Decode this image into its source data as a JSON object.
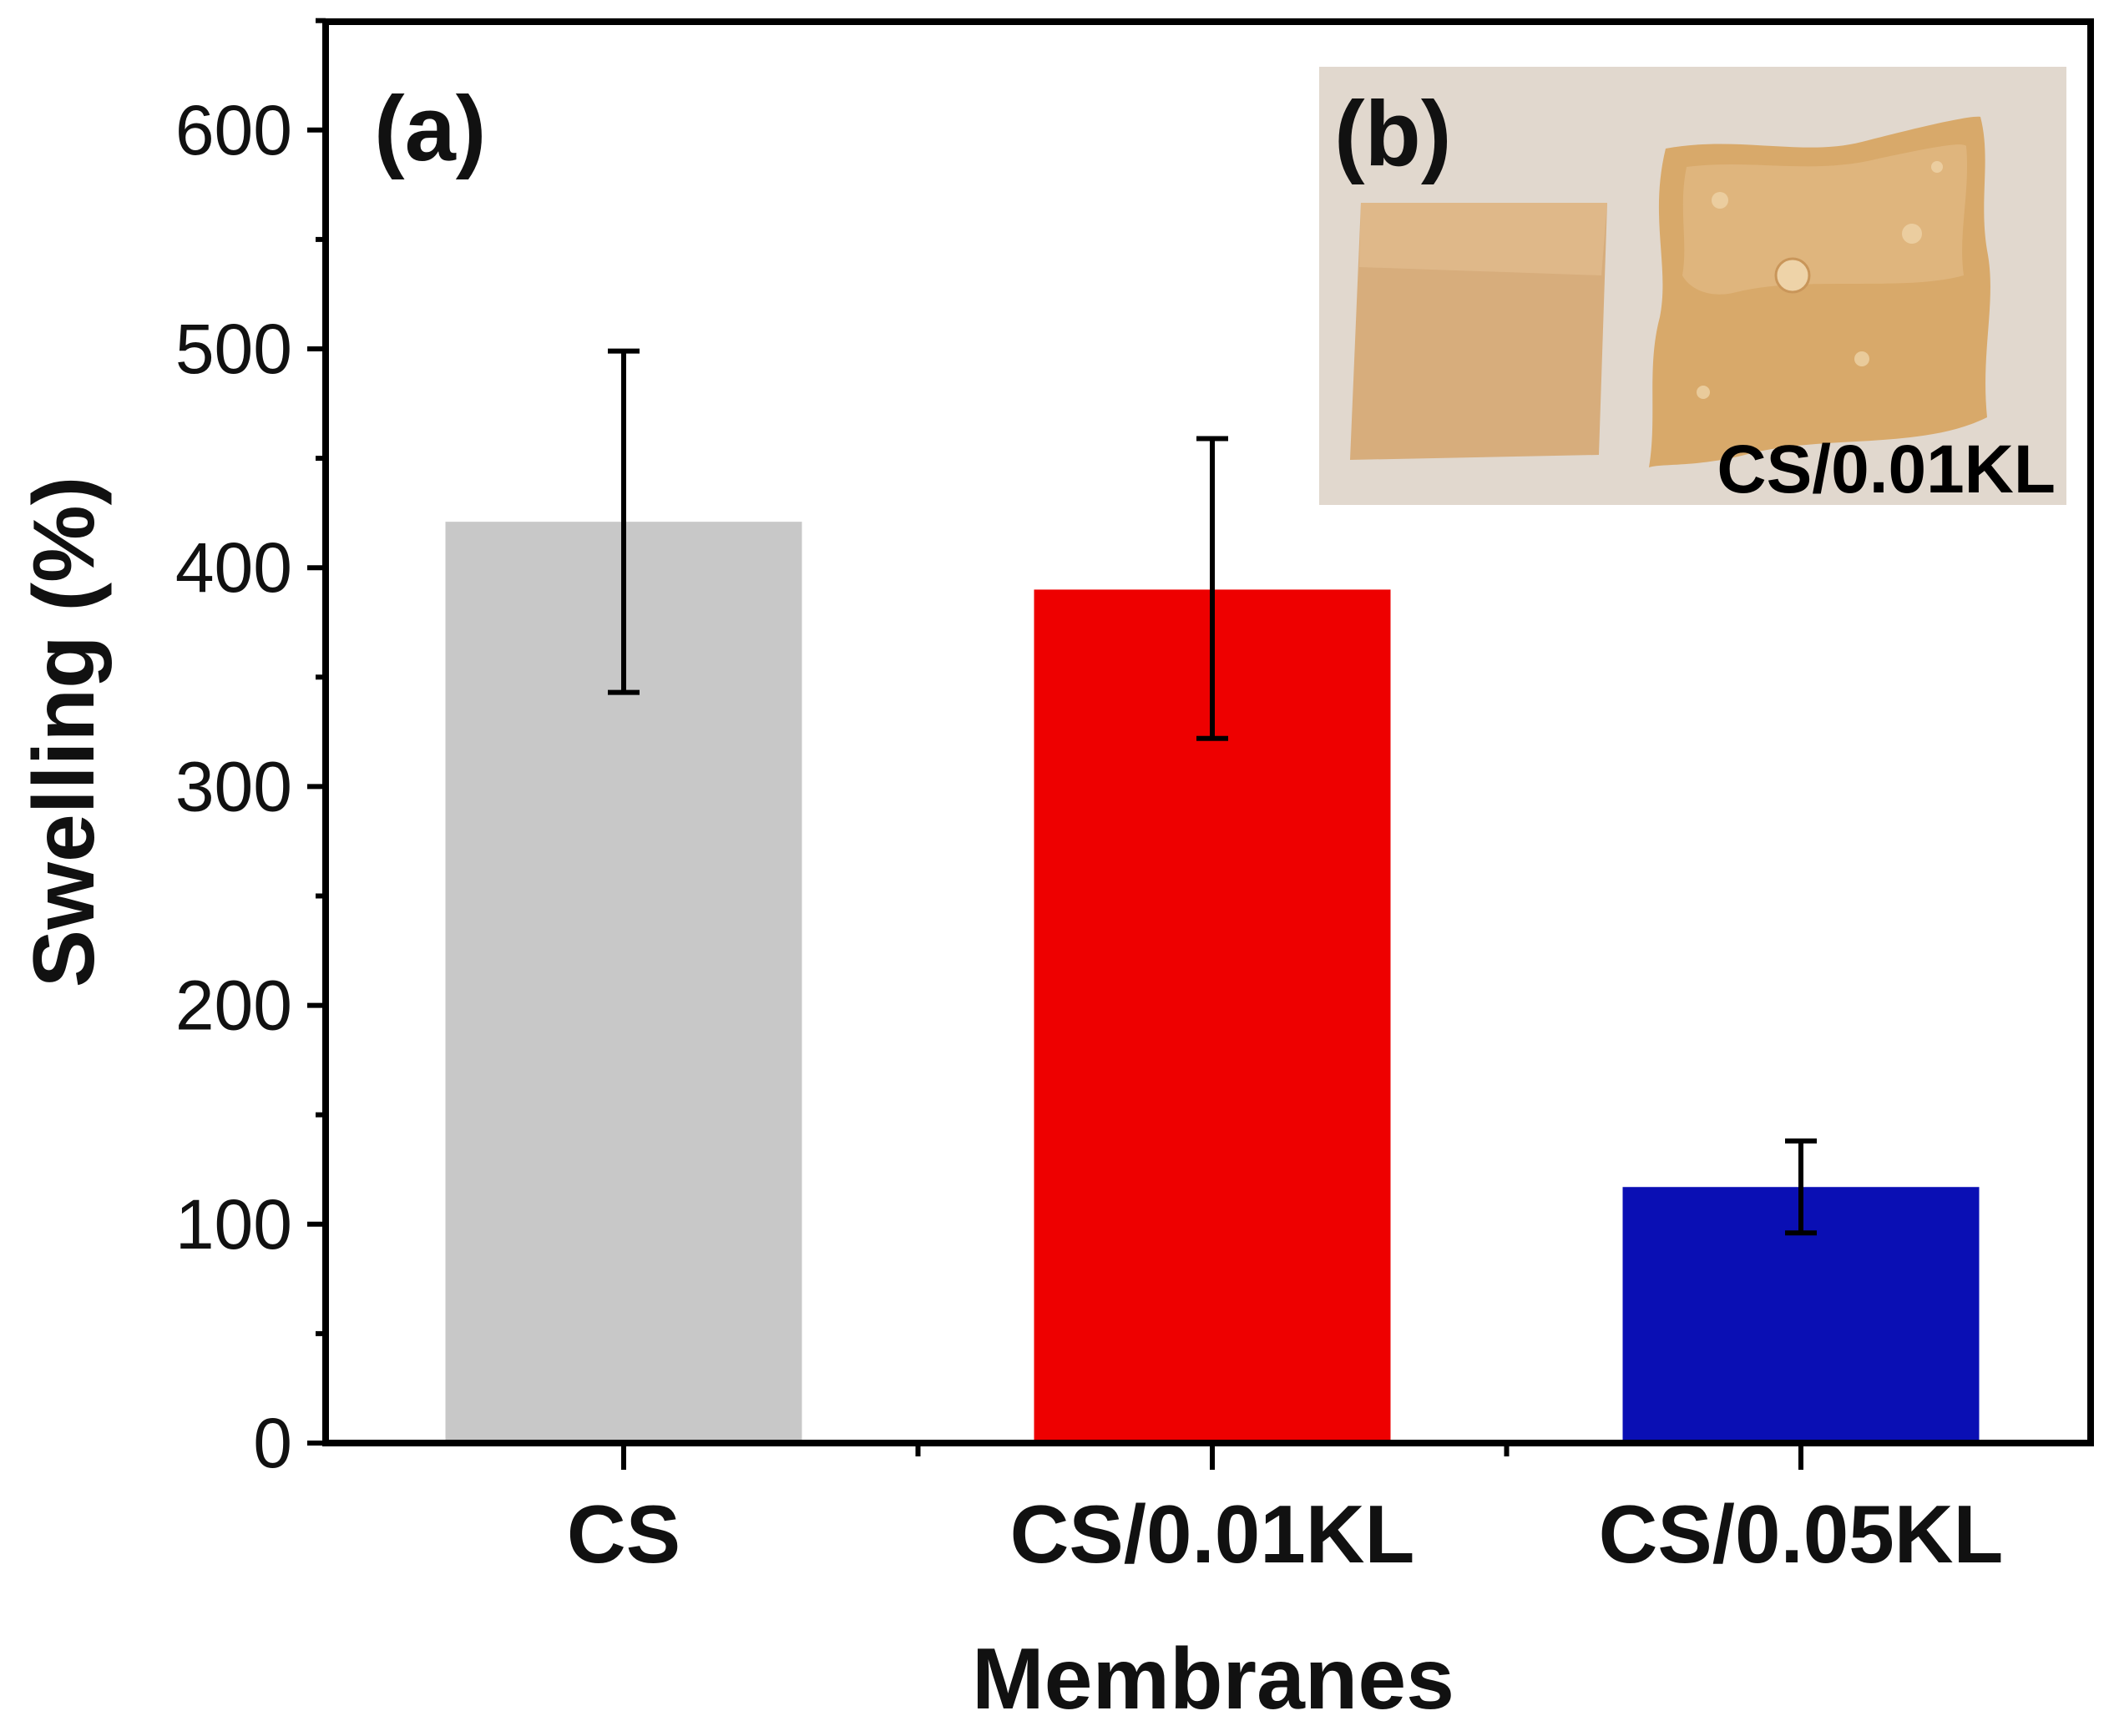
{
  "chart_data": {
    "type": "bar",
    "panel_label": "(a)",
    "title": "",
    "xlabel": "Membranes",
    "ylabel": "Swelling (%)",
    "ylim": [
      0,
      650
    ],
    "yticks": [
      0,
      100,
      200,
      300,
      400,
      500,
      600
    ],
    "categories": [
      "CS",
      "CS/0.01KL",
      "CS/0.05KL"
    ],
    "values": [
      421,
      390,
      117
    ],
    "error_low": [
      343,
      322,
      96
    ],
    "error_high": [
      499,
      459,
      138
    ],
    "colors": [
      "#c8c8c8",
      "#ee0000",
      "#0a0fb4"
    ],
    "grid": false
  },
  "inset": {
    "label": "(b)",
    "caption": "CS/0.01KL",
    "background_color": "#ddd3c8",
    "sample_color": "#d7ad7c"
  }
}
